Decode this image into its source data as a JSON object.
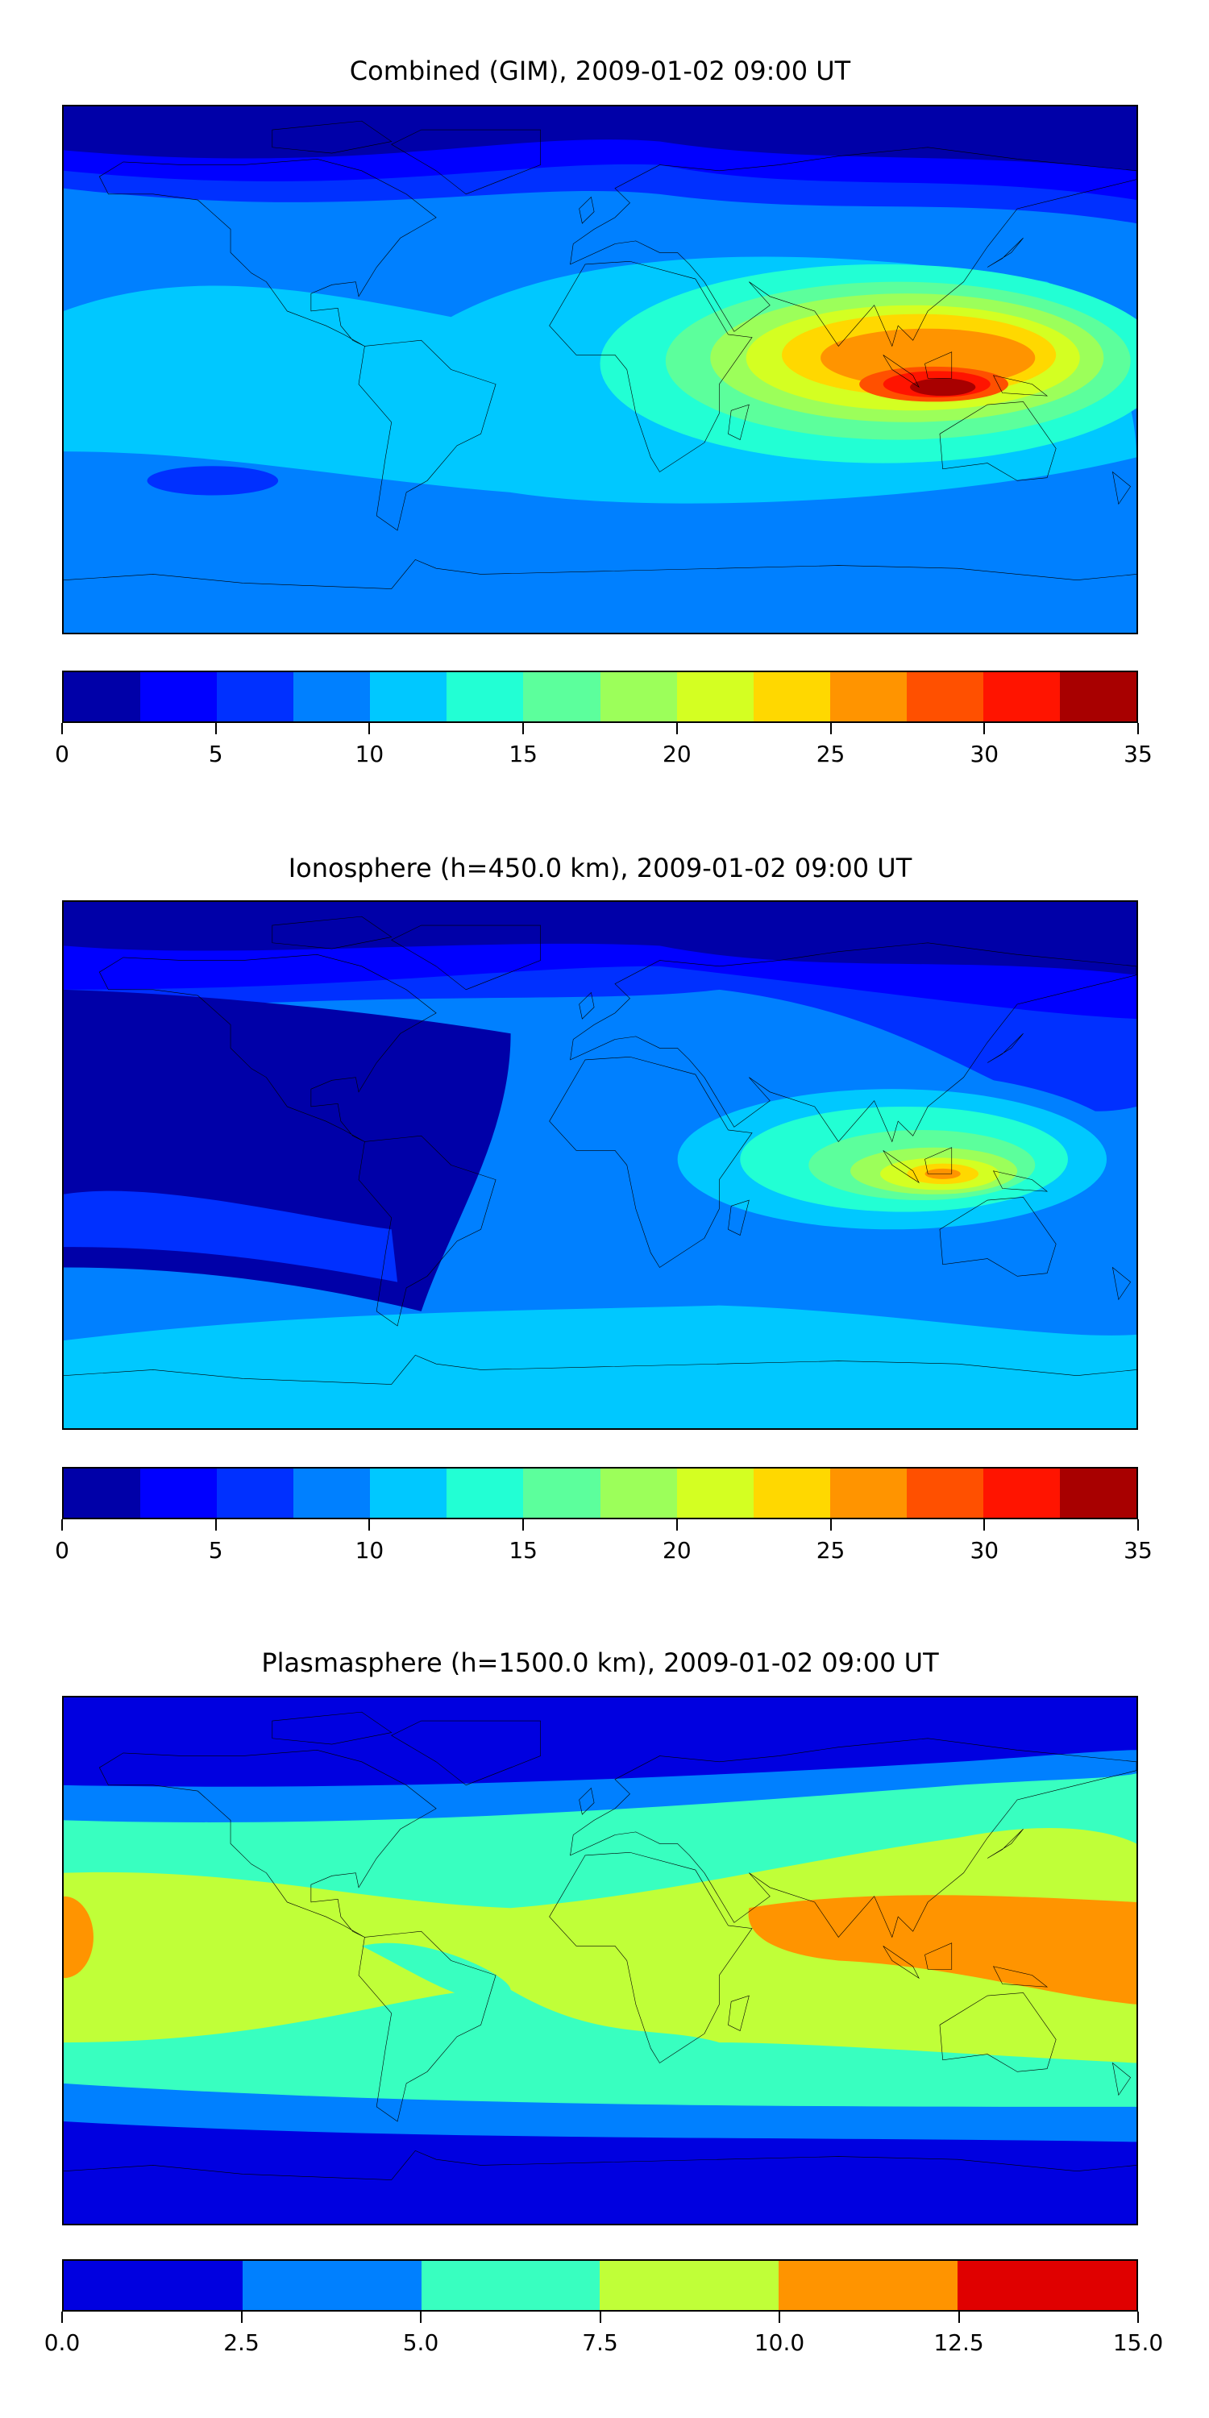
{
  "chart_data": [
    {
      "type": "heatmap",
      "title": "Combined (GIM), 2009-01-02 09:00 UT",
      "colorbar": {
        "levels": [
          0,
          2.5,
          5,
          7.5,
          10,
          12.5,
          15,
          17.5,
          20,
          22.5,
          25,
          27.5,
          30,
          32.5,
          35
        ],
        "colors": [
          "#0000a8",
          "#0000ff",
          "#0030ff",
          "#0080ff",
          "#00c8ff",
          "#22ffd4",
          "#5cff9c",
          "#9cff5a",
          "#d4ff22",
          "#ffd800",
          "#ff9400",
          "#ff5000",
          "#ff1400",
          "#a80000"
        ],
        "tick_values": [
          0,
          5,
          10,
          15,
          20,
          25,
          30,
          35
        ],
        "tick_labels": [
          "0",
          "5",
          "10",
          "15",
          "20",
          "25",
          "30",
          "35"
        ]
      },
      "peak_region": "Indian Ocean / Indonesia, max level 32.5-35"
    },
    {
      "type": "heatmap",
      "title": "Ionosphere  (h=450.0 km), 2009-01-02 09:00 UT",
      "colorbar": {
        "levels": [
          0,
          2.5,
          5,
          7.5,
          10,
          12.5,
          15,
          17.5,
          20,
          22.5,
          25,
          27.5,
          30,
          32.5,
          35
        ],
        "colors": [
          "#0000a8",
          "#0000ff",
          "#0030ff",
          "#0080ff",
          "#00c8ff",
          "#22ffd4",
          "#5cff9c",
          "#9cff5a",
          "#d4ff22",
          "#ffd800",
          "#ff9400",
          "#ff5000",
          "#ff1400",
          "#a80000"
        ],
        "tick_values": [
          0,
          5,
          10,
          15,
          20,
          25,
          30,
          35
        ],
        "tick_labels": [
          "0",
          "5",
          "10",
          "15",
          "20",
          "25",
          "30",
          "35"
        ]
      },
      "peak_region": "Indian Ocean near Indonesia, max level 25-27.5"
    },
    {
      "type": "heatmap",
      "title": "Plasmasphere (h=1500.0 km), 2009-01-02 09:00 UT",
      "colorbar": {
        "levels": [
          0,
          2.5,
          5,
          7.5,
          10,
          12.5,
          15
        ],
        "colors": [
          "#0000e0",
          "#0080ff",
          "#38ffc0",
          "#c0ff38",
          "#ff9400",
          "#e00000"
        ],
        "tick_values": [
          0,
          2.5,
          5,
          7.5,
          10,
          12.5,
          15
        ],
        "tick_labels": [
          "0.0",
          "2.5",
          "5.0",
          "7.5",
          "10.0",
          "12.5",
          "15.0"
        ]
      },
      "peak_region": "equatorial band, max level 10-12.5 over Indian Ocean/Western Pacific"
    }
  ]
}
